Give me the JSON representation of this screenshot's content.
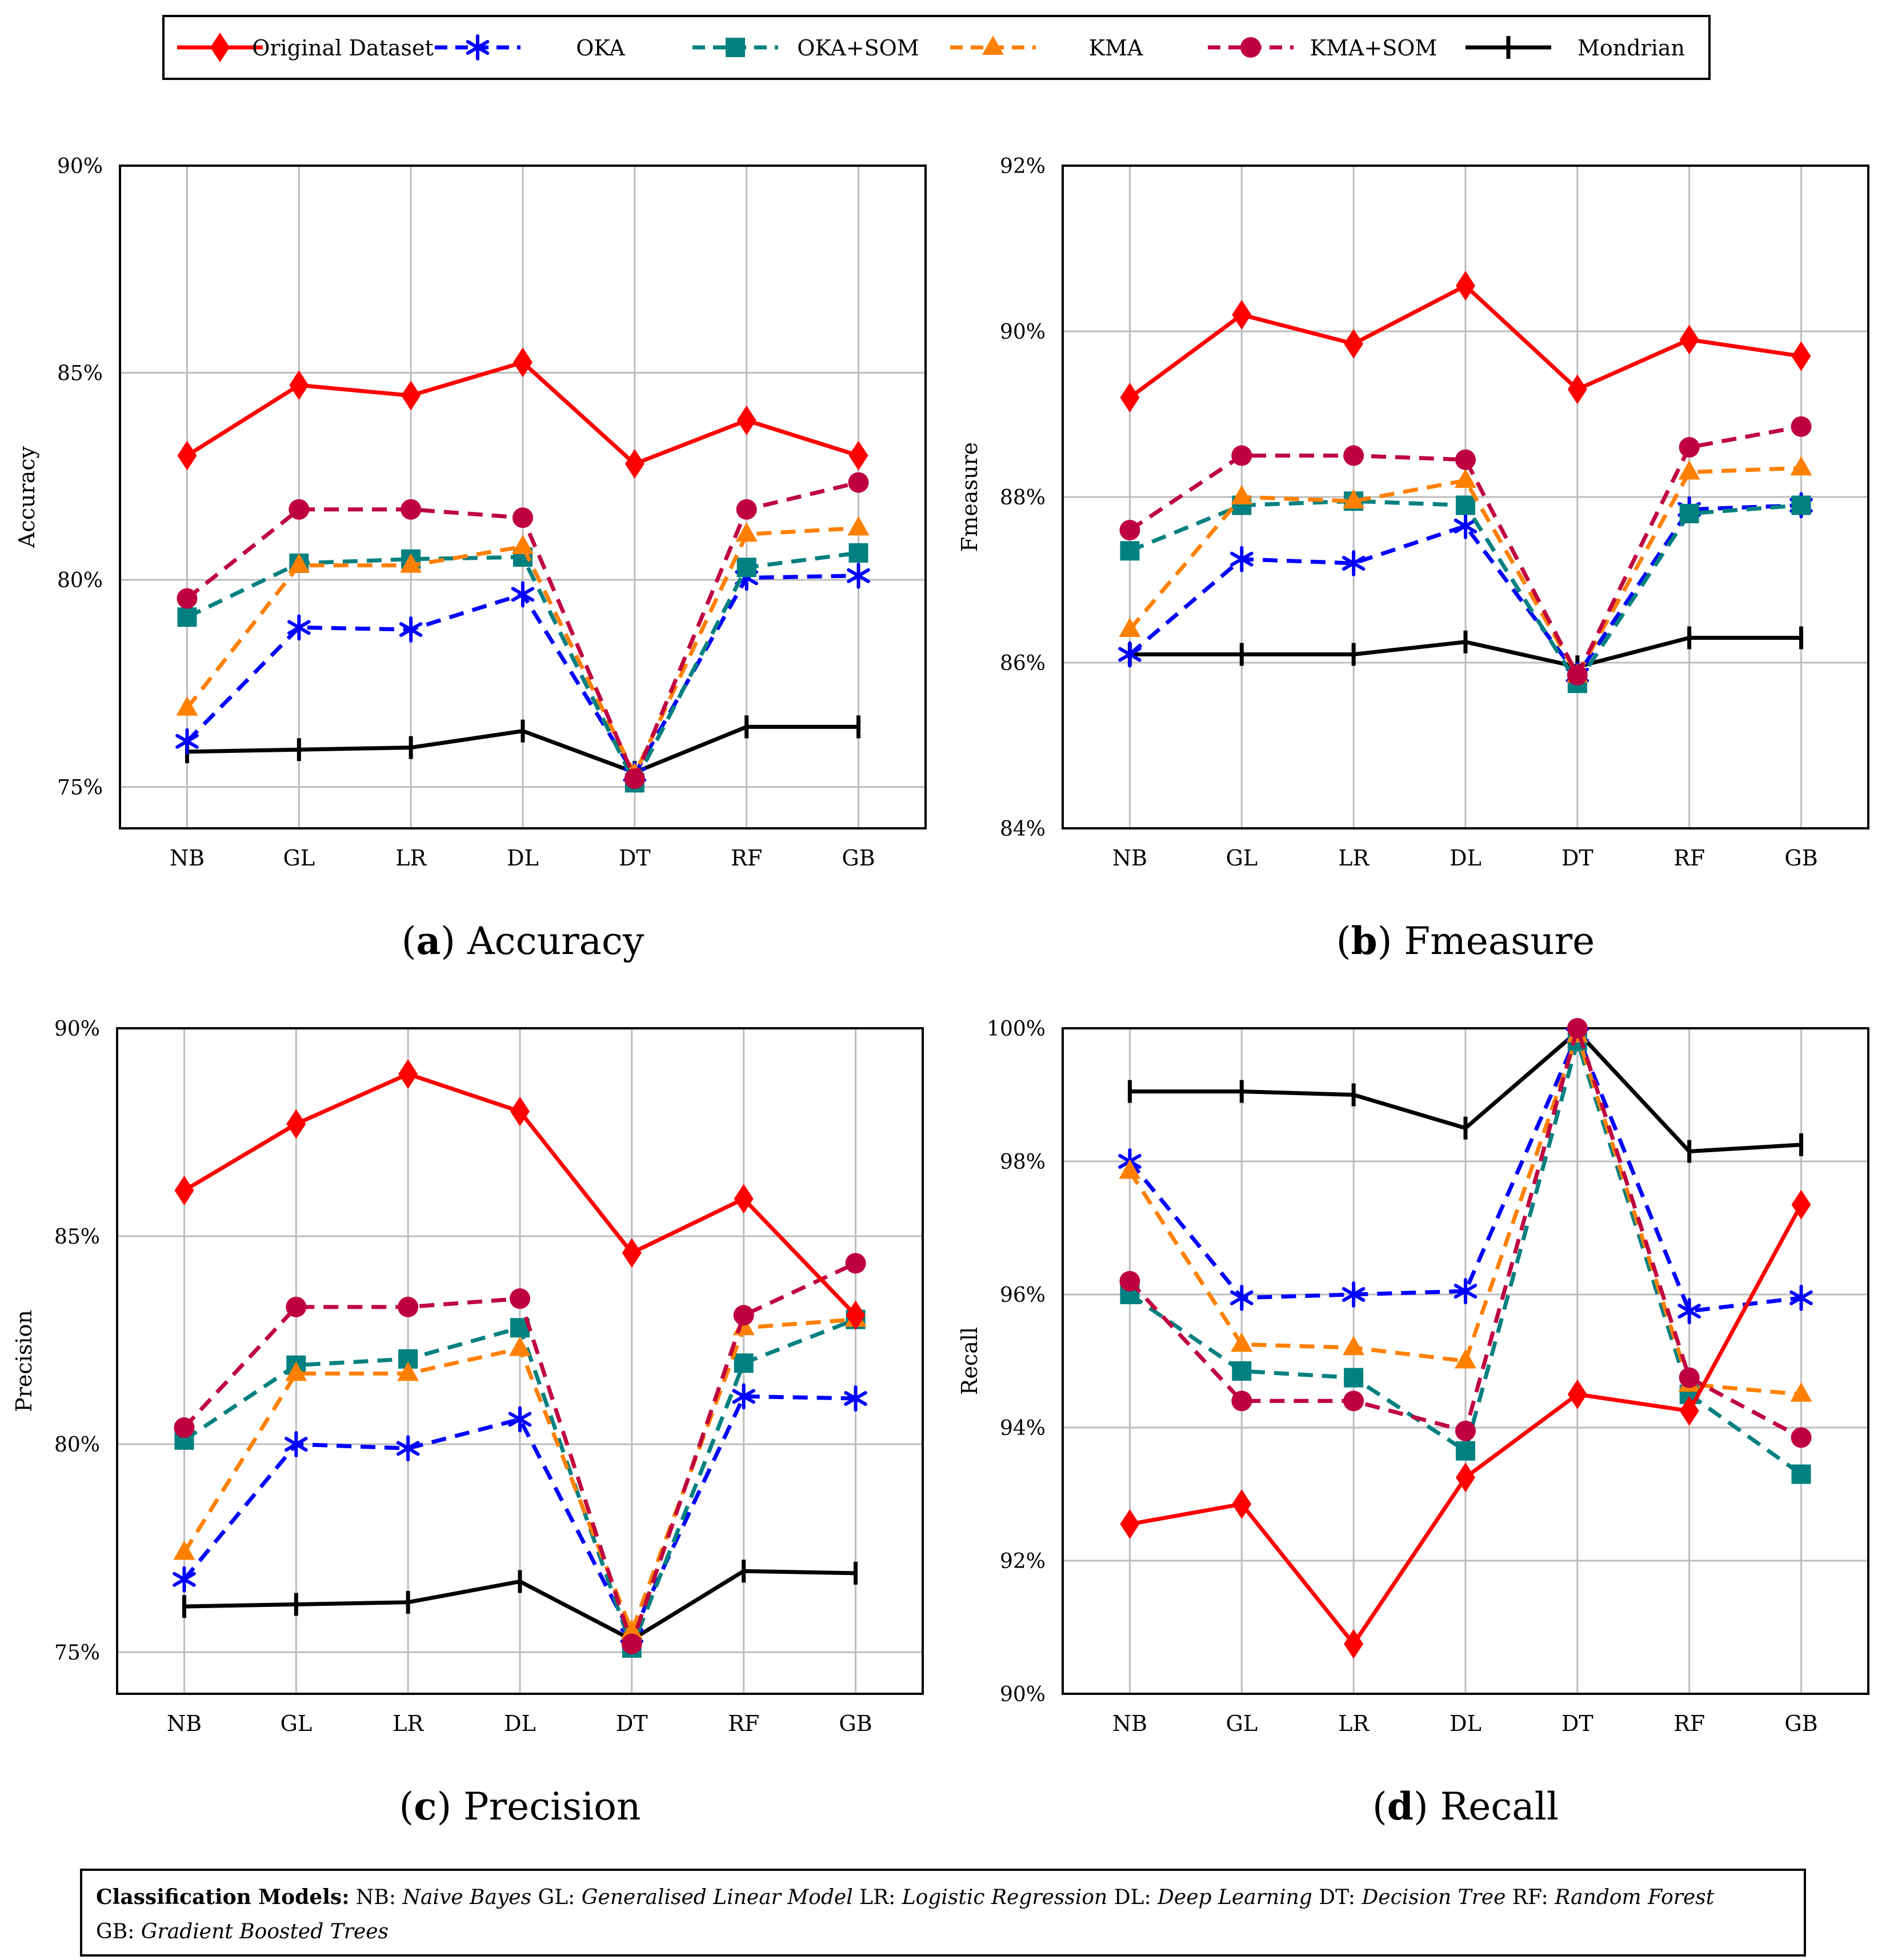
{
  "legend": {
    "series": [
      {
        "name": "Original Dataset",
        "color": "#ff0000",
        "marker": "diamond",
        "dash": "solid"
      },
      {
        "name": "OKA",
        "color": "#0000ff",
        "marker": "star",
        "dash": "dashed"
      },
      {
        "name": "OKA+SOM",
        "color": "#008080",
        "marker": "square",
        "dash": "dashed"
      },
      {
        "name": "KMA",
        "color": "#ff8000",
        "marker": "triangle",
        "dash": "dashed"
      },
      {
        "name": "KMA+SOM",
        "color": "#bf0040",
        "marker": "circle",
        "dash": "dashed"
      },
      {
        "name": "Mondrian",
        "color": "#000000",
        "marker": "vbar",
        "dash": "solid"
      }
    ]
  },
  "chart_data": [
    {
      "id": "a",
      "type": "line",
      "caption_letter": "a",
      "caption_text": "Accuracy",
      "title": "",
      "xlabel": "",
      "ylabel": "Accuracy",
      "categories": [
        "NB",
        "GL",
        "LR",
        "DL",
        "DT",
        "RF",
        "GB"
      ],
      "ylim": [
        74,
        90
      ],
      "yticks": [
        75,
        80,
        85,
        90
      ],
      "yticklabels": [
        "75%",
        "80%",
        "85%",
        "90%"
      ],
      "grid": true,
      "series": [
        {
          "name": "Original Dataset",
          "values": [
            83.0,
            84.7,
            84.45,
            85.25,
            82.8,
            83.85,
            83.0
          ]
        },
        {
          "name": "OKA",
          "values": [
            76.1,
            78.85,
            78.8,
            79.65,
            75.3,
            80.05,
            80.1
          ]
        },
        {
          "name": "OKA+SOM",
          "values": [
            79.1,
            80.4,
            80.5,
            80.55,
            75.1,
            80.3,
            80.65
          ]
        },
        {
          "name": "KMA",
          "values": [
            76.9,
            80.35,
            80.35,
            80.8,
            75.3,
            81.1,
            81.25
          ]
        },
        {
          "name": "KMA+SOM",
          "values": [
            79.55,
            81.7,
            81.7,
            81.5,
            75.2,
            81.7,
            82.35
          ]
        },
        {
          "name": "Mondrian",
          "values": [
            75.85,
            75.9,
            75.95,
            76.35,
            75.35,
            76.45,
            76.45
          ]
        }
      ]
    },
    {
      "id": "b",
      "type": "line",
      "caption_letter": "b",
      "caption_text": "Fmeasure",
      "title": "",
      "xlabel": "",
      "ylabel": "Fmeasure",
      "categories": [
        "NB",
        "GL",
        "LR",
        "DL",
        "DT",
        "RF",
        "GB"
      ],
      "ylim": [
        84,
        92
      ],
      "yticks": [
        84,
        86,
        88,
        90,
        92
      ],
      "yticklabels": [
        "84%",
        "86%",
        "88%",
        "90%",
        "92%"
      ],
      "grid": true,
      "series": [
        {
          "name": "Original Dataset",
          "values": [
            89.2,
            90.2,
            89.85,
            90.55,
            89.3,
            89.9,
            89.7
          ]
        },
        {
          "name": "OKA",
          "values": [
            86.1,
            87.25,
            87.2,
            87.65,
            85.85,
            87.85,
            87.9
          ]
        },
        {
          "name": "OKA+SOM",
          "values": [
            87.35,
            87.9,
            87.95,
            87.9,
            85.75,
            87.8,
            87.9
          ]
        },
        {
          "name": "KMA",
          "values": [
            86.4,
            88.0,
            87.95,
            88.2,
            85.85,
            88.3,
            88.35
          ]
        },
        {
          "name": "KMA+SOM",
          "values": [
            87.6,
            88.5,
            88.5,
            88.45,
            85.85,
            88.6,
            88.85
          ]
        },
        {
          "name": "Mondrian",
          "values": [
            86.1,
            86.1,
            86.1,
            86.25,
            85.95,
            86.3,
            86.3
          ]
        }
      ]
    },
    {
      "id": "c",
      "type": "line",
      "caption_letter": "c",
      "caption_text": "Precision",
      "title": "",
      "xlabel": "",
      "ylabel": "Precision",
      "categories": [
        "NB",
        "GL",
        "LR",
        "DL",
        "DT",
        "RF",
        "GB"
      ],
      "ylim": [
        74,
        90
      ],
      "yticks": [
        75,
        80,
        85,
        90
      ],
      "yticklabels": [
        "75%",
        "80%",
        "85%",
        "90%"
      ],
      "grid": true,
      "series": [
        {
          "name": "Original Dataset",
          "values": [
            86.1,
            87.7,
            88.9,
            88.0,
            84.6,
            85.9,
            83.1
          ]
        },
        {
          "name": "OKA",
          "values": [
            76.75,
            80.0,
            79.9,
            80.6,
            75.4,
            81.15,
            81.1
          ]
        },
        {
          "name": "OKA+SOM",
          "values": [
            80.1,
            81.9,
            82.05,
            82.8,
            75.1,
            81.95,
            83.0
          ]
        },
        {
          "name": "KMA",
          "values": [
            77.4,
            81.7,
            81.7,
            82.3,
            75.5,
            82.8,
            83.0
          ]
        },
        {
          "name": "KMA+SOM",
          "values": [
            80.4,
            83.3,
            83.3,
            83.5,
            75.2,
            83.1,
            84.35
          ]
        },
        {
          "name": "Mondrian",
          "values": [
            76.1,
            76.15,
            76.2,
            76.7,
            75.3,
            76.95,
            76.9
          ]
        }
      ]
    },
    {
      "id": "d",
      "type": "line",
      "caption_letter": "d",
      "caption_text": "Recall",
      "title": "",
      "xlabel": "",
      "ylabel": "Recall",
      "categories": [
        "NB",
        "GL",
        "LR",
        "DL",
        "DT",
        "RF",
        "GB"
      ],
      "ylim": [
        90,
        100
      ],
      "yticks": [
        90,
        92,
        94,
        96,
        98,
        100
      ],
      "yticklabels": [
        "90%",
        "92%",
        "94%",
        "96%",
        "98%",
        "100%"
      ],
      "grid": true,
      "series": [
        {
          "name": "Original Dataset",
          "values": [
            92.55,
            92.85,
            90.75,
            93.25,
            94.5,
            94.25,
            97.35
          ]
        },
        {
          "name": "OKA",
          "values": [
            98.0,
            95.95,
            96.0,
            96.05,
            99.9,
            95.75,
            95.95
          ]
        },
        {
          "name": "OKA+SOM",
          "values": [
            96.0,
            94.85,
            94.75,
            93.65,
            99.8,
            94.5,
            93.3
          ]
        },
        {
          "name": "KMA",
          "values": [
            97.85,
            95.25,
            95.2,
            95.0,
            99.9,
            94.65,
            94.5
          ]
        },
        {
          "name": "KMA+SOM",
          "values": [
            96.2,
            94.4,
            94.4,
            93.95,
            100.0,
            94.75,
            93.85
          ]
        },
        {
          "name": "Mondrian",
          "values": [
            99.05,
            99.05,
            99.0,
            98.5,
            99.95,
            98.15,
            98.25
          ]
        }
      ]
    }
  ],
  "footnote": {
    "heading": "Classification Models:",
    "entries": [
      {
        "abbr": "NB:",
        "full": "Naive Bayes"
      },
      {
        "abbr": "GL:",
        "full": "Generalised Linear Model"
      },
      {
        "abbr": "LR:",
        "full": "Logistic Regression"
      },
      {
        "abbr": "DL:",
        "full": "Deep Learning"
      },
      {
        "abbr": "DT:",
        "full": "Decision Tree"
      },
      {
        "abbr": "RF:",
        "full": "Random Forest"
      },
      {
        "abbr": "GB:",
        "full": "Gradient Boosted Trees"
      }
    ]
  }
}
